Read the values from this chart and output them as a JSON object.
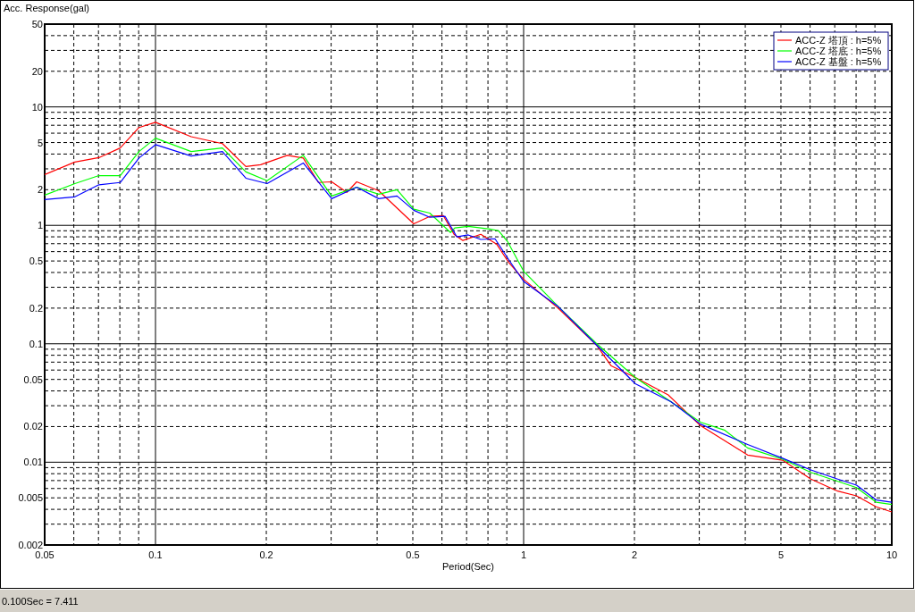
{
  "chart_data": {
    "type": "line",
    "xlabel": "Period(Sec)",
    "ylabel": "Acc. Response(gal)",
    "log": "xy",
    "grid": true,
    "legend": "top right",
    "marker": "none",
    "line_style": "solid",
    "xlim": [
      0.05,
      10
    ],
    "ylim": [
      0.002,
      50
    ],
    "xticks": [
      0.05,
      {
        "value": 0.06,
        "label": null
      },
      {
        "value": 0.07,
        "label": null
      },
      {
        "value": 0.08,
        "label": null
      },
      {
        "value": 0.09,
        "label": null
      },
      0.1,
      0.2,
      {
        "value": 0.3,
        "label": null
      },
      {
        "value": 0.4,
        "label": null
      },
      0.5,
      {
        "value": 0.6,
        "label": null
      },
      {
        "value": 0.7,
        "label": null
      },
      {
        "value": 0.8,
        "label": null
      },
      {
        "value": 0.9,
        "label": null
      },
      1,
      2,
      {
        "value": 3,
        "label": null
      },
      {
        "value": 4,
        "label": null
      },
      5,
      {
        "value": 6,
        "label": null
      },
      {
        "value": 7,
        "label": null
      },
      {
        "value": 8,
        "label": null
      },
      {
        "value": 9,
        "label": null
      },
      10
    ],
    "yticks": [
      0.002,
      {
        "value": 0.003,
        "label": null
      },
      {
        "value": 0.004,
        "label": null
      },
      0.005,
      {
        "value": 0.006,
        "label": null
      },
      {
        "value": 0.007,
        "label": null
      },
      {
        "value": 0.008,
        "label": null
      },
      {
        "value": 0.009,
        "label": null
      },
      0.01,
      0.02,
      {
        "value": 0.03,
        "label": null
      },
      {
        "value": 0.04,
        "label": null
      },
      0.05,
      {
        "value": 0.06,
        "label": null
      },
      {
        "value": 0.07,
        "label": null
      },
      {
        "value": 0.08,
        "label": null
      },
      {
        "value": 0.09,
        "label": null
      },
      0.1,
      0.2,
      {
        "value": 0.3,
        "label": null
      },
      {
        "value": 0.4,
        "label": null
      },
      0.5,
      {
        "value": 0.6,
        "label": null
      },
      {
        "value": 0.7,
        "label": null
      },
      {
        "value": 0.8,
        "label": null
      },
      {
        "value": 0.9,
        "label": null
      },
      1,
      2,
      {
        "value": 3,
        "label": null
      },
      {
        "value": 4,
        "label": null
      },
      5,
      {
        "value": 6,
        "label": null
      },
      {
        "value": 7,
        "label": null
      },
      {
        "value": 8,
        "label": null
      },
      {
        "value": 9,
        "label": null
      },
      10,
      20,
      {
        "value": 30,
        "label": null
      },
      {
        "value": 40,
        "label": null
      },
      50
    ],
    "annotations": [
      "0.100Sec = 7.411"
    ],
    "series": [
      {
        "name": "ACC-Z 塔頂 : h=5%",
        "color": "#ff0000",
        "x": [
          0.05,
          0.0604,
          0.0702,
          0.0802,
          0.0902,
          0.1,
          0.125,
          0.152,
          0.176,
          0.193,
          0.228,
          0.252,
          0.277,
          0.301,
          0.331,
          0.352,
          0.404,
          0.503,
          0.556,
          0.605,
          0.647,
          0.684,
          0.765,
          0.846,
          0.909,
          1.0,
          1.24,
          1.58,
          1.73,
          2.01,
          2.47,
          3.02,
          4.06,
          5.05,
          6.03,
          7.13,
          8.02,
          9.07,
          10
        ],
        "values": [
          2.68,
          3.42,
          3.73,
          4.5,
          6.7,
          7.411,
          5.6,
          4.9,
          3.14,
          3.25,
          3.9,
          3.7,
          2.3,
          2.33,
          1.9,
          2.33,
          1.96,
          1.03,
          1.19,
          1.21,
          0.84,
          0.745,
          0.84,
          0.69,
          0.49,
          0.35,
          0.2,
          0.097,
          0.065,
          0.052,
          0.037,
          0.0204,
          0.0115,
          0.0104,
          0.0072,
          0.0057,
          0.0052,
          0.0042,
          0.0038
        ]
      },
      {
        "name": "ACC-Z 塔底 : h=5%",
        "color": "#00ff00",
        "x": [
          0.05,
          0.0604,
          0.0702,
          0.0802,
          0.0902,
          0.1,
          0.125,
          0.152,
          0.176,
          0.201,
          0.252,
          0.301,
          0.352,
          0.404,
          0.453,
          0.503,
          0.556,
          0.633,
          0.65,
          0.707,
          0.809,
          0.855,
          0.904,
          1.0,
          1.24,
          1.58,
          2.01,
          2.51,
          3.02,
          3.51,
          4.06,
          5.05,
          6.03,
          7.13,
          8.02,
          9.07,
          10
        ],
        "values": [
          1.8,
          2.25,
          2.63,
          2.63,
          4.2,
          5.45,
          4.2,
          4.5,
          2.83,
          2.38,
          3.9,
          1.77,
          2.1,
          1.83,
          2.0,
          1.37,
          1.27,
          0.87,
          0.95,
          0.98,
          0.93,
          0.9,
          0.73,
          0.41,
          0.207,
          0.1,
          0.052,
          0.0325,
          0.0218,
          0.0187,
          0.0132,
          0.0106,
          0.0082,
          0.0069,
          0.0061,
          0.0046,
          0.0044
        ]
      },
      {
        "name": "ACC-Z 基盤 : h=5%",
        "color": "#0000ff",
        "x": [
          0.05,
          0.0604,
          0.0702,
          0.0802,
          0.0902,
          0.1,
          0.125,
          0.152,
          0.176,
          0.201,
          0.252,
          0.301,
          0.352,
          0.404,
          0.453,
          0.503,
          0.556,
          0.612,
          0.658,
          0.707,
          0.765,
          0.836,
          0.92,
          1.0,
          1.24,
          1.58,
          2.01,
          2.51,
          3.02,
          4.06,
          5.05,
          6.03,
          7.13,
          8.02,
          9.07,
          10
        ],
        "values": [
          1.65,
          1.74,
          2.2,
          2.3,
          3.7,
          4.8,
          3.85,
          4.2,
          2.5,
          2.25,
          3.36,
          1.68,
          2.1,
          1.68,
          1.77,
          1.34,
          1.17,
          1.19,
          0.8,
          0.83,
          0.76,
          0.77,
          0.49,
          0.336,
          0.207,
          0.097,
          0.046,
          0.0325,
          0.021,
          0.0141,
          0.0108,
          0.0086,
          0.0072,
          0.0064,
          0.0048,
          0.0046
        ]
      }
    ]
  }
}
